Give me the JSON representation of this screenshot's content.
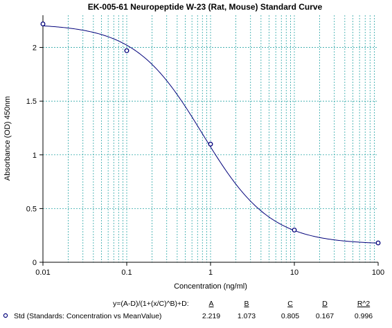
{
  "chart_data": {
    "type": "scatter",
    "title": "EK-005-61 Neuropeptide W-23 (Rat, Mouse) Standard Curve",
    "xlabel": "Concentration (ng/ml)",
    "ylabel": "Absorbance (OD) 450nm",
    "x_scale": "log",
    "xlim": [
      0.01,
      100
    ],
    "ylim": [
      0,
      2.3
    ],
    "x_ticks": [
      "0.01",
      "0.1",
      "1",
      "10",
      "100"
    ],
    "y_ticks": [
      "0",
      "0.5",
      "1",
      "1.5",
      "2"
    ],
    "grid": true,
    "series": [
      {
        "name": "Std (Standards: Concentration vs MeanValue)",
        "x": [
          0.01,
          0.1,
          1,
          10,
          100
        ],
        "y": [
          2.219,
          1.97,
          1.1,
          0.3,
          0.18
        ]
      }
    ],
    "fit": {
      "equation": "y=(A-D)/(1+(x/C)^B)+D:",
      "headers": [
        "A",
        "B",
        "C",
        "D",
        "R^2"
      ],
      "values": [
        "2.219",
        "1.073",
        "0.805",
        "0.167",
        "0.996"
      ]
    },
    "colors": {
      "grid": "#2aa6a6",
      "curve": "#00007a",
      "point": "#00007a"
    }
  }
}
